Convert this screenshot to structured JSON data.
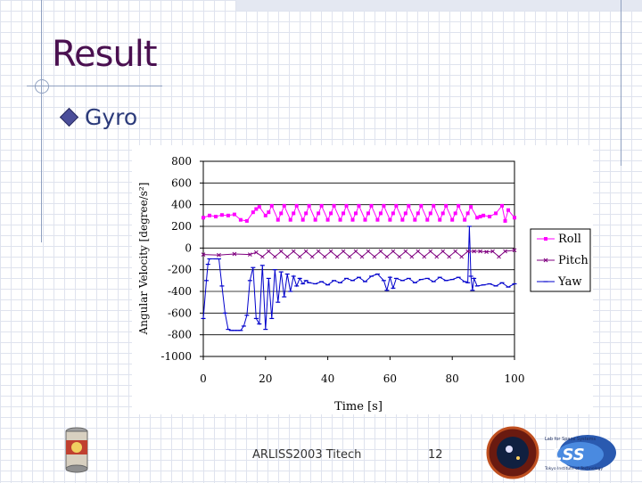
{
  "slide": {
    "title": "Result",
    "bullet": "Gyro",
    "footer_left": "ARLISS2003 Titech",
    "page_number": "12"
  },
  "logos": {
    "lss_text": "LSS",
    "lss_caption_top": "Lab for Space Systems",
    "lss_caption_bottom": "Tokyo Institute of Technology"
  },
  "colors": {
    "title": "#4a1050",
    "bullet_text": "#2b3a7a",
    "roll": "#ff00ff",
    "pitch": "#800080",
    "yaw": "#0000cc",
    "grid": "#000000"
  },
  "chart_data": {
    "type": "line",
    "xlabel": "Time [s]",
    "ylabel": "Angular Velocity [degree/s²]",
    "xlim": [
      0,
      100
    ],
    "ylim": [
      -1000,
      800
    ],
    "xticks": [
      0,
      20,
      40,
      60,
      80,
      100
    ],
    "yticks": [
      800,
      600,
      400,
      200,
      0,
      -200,
      -400,
      -600,
      -800,
      -1000
    ],
    "grid": "horizontal",
    "legend_position": "right",
    "series": [
      {
        "name": "Roll",
        "color": "#ff00ff",
        "marker": "square",
        "x": [
          0,
          2,
          4,
          6,
          8,
          10,
          12,
          14,
          16,
          17,
          18,
          20,
          21,
          22,
          24,
          25,
          26,
          28,
          29,
          30,
          32,
          33,
          34,
          36,
          37,
          38,
          40,
          41,
          42,
          44,
          45,
          46,
          48,
          49,
          50,
          52,
          53,
          54,
          56,
          57,
          58,
          60,
          61,
          62,
          64,
          65,
          66,
          68,
          69,
          70,
          72,
          73,
          74,
          76,
          77,
          78,
          80,
          81,
          82,
          84,
          85,
          86,
          88,
          89,
          90,
          92,
          94,
          96,
          97,
          98,
          100
        ],
        "y": [
          280,
          300,
          290,
          305,
          300,
          310,
          260,
          250,
          330,
          360,
          380,
          300,
          330,
          390,
          260,
          320,
          390,
          260,
          320,
          390,
          260,
          320,
          390,
          260,
          320,
          390,
          260,
          320,
          390,
          260,
          320,
          390,
          260,
          320,
          390,
          260,
          320,
          390,
          260,
          320,
          390,
          260,
          320,
          390,
          260,
          320,
          390,
          260,
          320,
          390,
          260,
          320,
          390,
          260,
          320,
          390,
          260,
          320,
          390,
          260,
          320,
          380,
          280,
          290,
          300,
          290,
          320,
          390,
          250,
          350,
          280
        ]
      },
      {
        "name": "Pitch",
        "color": "#800080",
        "marker": "x",
        "x": [
          0,
          5,
          10,
          15,
          17,
          19,
          21,
          23,
          25,
          27,
          29,
          31,
          33,
          35,
          37,
          39,
          41,
          43,
          45,
          47,
          49,
          51,
          53,
          55,
          57,
          59,
          61,
          63,
          65,
          67,
          69,
          71,
          73,
          75,
          77,
          79,
          81,
          83,
          85,
          87,
          89,
          91,
          93,
          95,
          97,
          100
        ],
        "y": [
          -60,
          -65,
          -55,
          -60,
          -40,
          -80,
          -30,
          -80,
          -30,
          -80,
          -30,
          -80,
          -30,
          -80,
          -30,
          -80,
          -30,
          -80,
          -30,
          -80,
          -30,
          -80,
          -30,
          -80,
          -30,
          -80,
          -30,
          -80,
          -30,
          -80,
          -30,
          -80,
          -30,
          -80,
          -30,
          -80,
          -30,
          -80,
          -30,
          -30,
          -30,
          -35,
          -30,
          -80,
          -30,
          -20
        ]
      },
      {
        "name": "Yaw",
        "color": "#0000cc",
        "marker": "dash",
        "x": [
          0,
          1,
          1.5,
          2,
          4,
          5,
          6,
          7,
          8,
          9,
          10,
          11,
          12,
          13,
          14,
          15,
          16,
          17,
          18,
          19,
          20,
          21,
          22,
          23,
          24,
          25,
          26,
          27,
          28,
          29,
          30,
          31,
          32,
          33,
          34,
          36,
          38,
          40,
          42,
          44,
          46,
          48,
          50,
          52,
          54,
          56,
          58,
          59,
          60,
          61,
          62,
          64,
          66,
          68,
          70,
          72,
          74,
          76,
          78,
          80,
          82,
          84,
          85,
          85.5,
          86,
          86.5,
          87,
          88,
          90,
          92,
          94,
          96,
          98,
          100
        ],
        "y": [
          -650,
          -300,
          -150,
          -100,
          -100,
          -100,
          -350,
          -600,
          -750,
          -760,
          -760,
          -760,
          -760,
          -720,
          -620,
          -300,
          -180,
          -650,
          -700,
          -160,
          -750,
          -280,
          -650,
          -200,
          -500,
          -220,
          -450,
          -240,
          -400,
          -260,
          -350,
          -280,
          -330,
          -300,
          -320,
          -330,
          -310,
          -340,
          -300,
          -320,
          -280,
          -300,
          -270,
          -310,
          -260,
          -240,
          -300,
          -390,
          -270,
          -370,
          -280,
          -300,
          -280,
          -320,
          -290,
          -280,
          -310,
          -270,
          -300,
          -290,
          -270,
          -310,
          -320,
          200,
          -260,
          -390,
          -280,
          -350,
          -340,
          -330,
          -350,
          -320,
          -360,
          -330
        ]
      }
    ]
  }
}
